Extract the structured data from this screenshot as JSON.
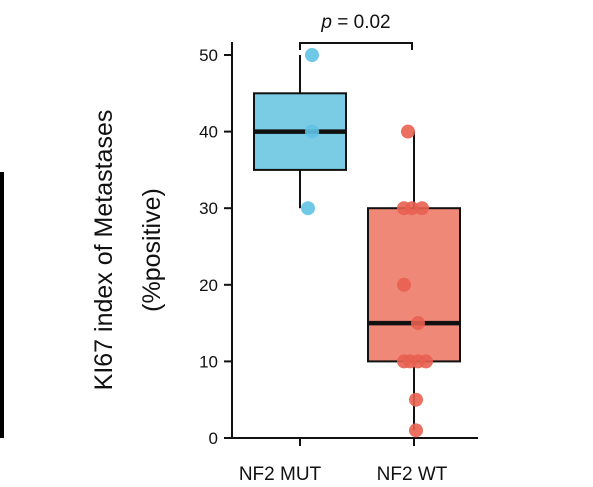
{
  "chart_data": {
    "type": "box",
    "ylabel": [
      "KI67 index of Metastases",
      "(%positive)"
    ],
    "ylim": [
      0,
      50
    ],
    "yticks": [
      0,
      10,
      20,
      30,
      40,
      50
    ],
    "categories": [
      "NF2 MUT",
      "NF2 WT"
    ],
    "groups": [
      {
        "category": "NF2 MUT",
        "color": "#7ACCE4",
        "point_color": "#5FC3E3",
        "q1": 35,
        "median": 40,
        "q3": 45,
        "whisker_low": 30,
        "whisker_high": 50,
        "points": [
          50,
          40,
          30
        ]
      },
      {
        "category": "NF2 WT",
        "color": "#F08878",
        "point_color": "#E86050",
        "q1": 10,
        "median": 15,
        "q3": 30,
        "whisker_low": 1,
        "whisker_high": 40,
        "points": [
          40,
          30,
          30,
          30,
          20,
          15,
          10,
          10,
          10,
          10,
          5,
          1
        ]
      }
    ],
    "annotation": {
      "prefix": "p",
      "text": " = 0.02"
    },
    "grid": false,
    "legend": "none"
  }
}
